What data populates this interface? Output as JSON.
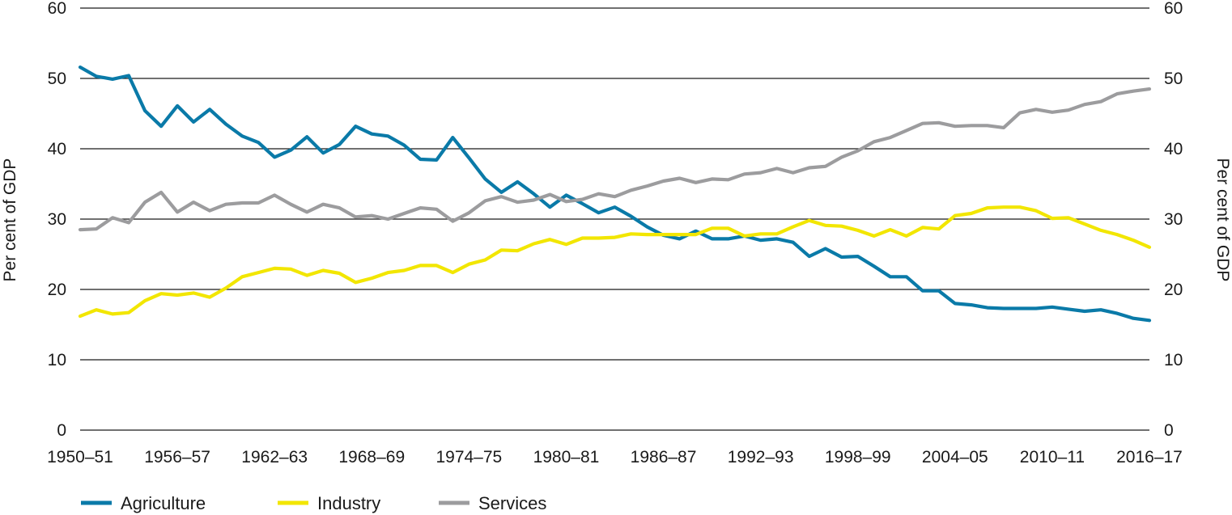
{
  "chart_data": {
    "type": "line",
    "y_left_label": "Per cent of GDP",
    "y_right_label": "Per cent of GDP",
    "ylim": [
      0,
      60
    ],
    "y_ticks": [
      0,
      10,
      20,
      30,
      40,
      50,
      60
    ],
    "grid": "horizontal",
    "legend_position": "bottom-left",
    "x_tick_labels": [
      "1950–51",
      "1956–57",
      "1962–63",
      "1968–69",
      "1974–75",
      "1980–81",
      "1986–87",
      "1992–93",
      "1998–99",
      "2004–05",
      "2010–11",
      "2016–17"
    ],
    "x_start_year": 1950,
    "x_end_year": 2016,
    "series": [
      {
        "name": "Agriculture",
        "color": "#0a7aa8",
        "values": [
          51.6,
          50.3,
          49.9,
          50.4,
          45.4,
          43.2,
          46.1,
          43.8,
          45.6,
          43.5,
          41.8,
          40.9,
          38.8,
          39.8,
          41.7,
          39.4,
          40.6,
          43.2,
          42.1,
          41.8,
          40.5,
          38.5,
          38.4,
          41.6,
          38.7,
          35.7,
          33.8,
          35.3,
          33.6,
          31.7,
          33.4,
          32.2,
          30.9,
          31.7,
          30.4,
          28.9,
          27.7,
          27.2,
          28.3,
          27.2,
          27.2,
          27.6,
          27.0,
          27.2,
          26.7,
          24.7,
          25.8,
          24.6,
          24.7,
          23.3,
          21.8,
          21.8,
          19.8,
          19.8,
          18.0,
          17.8,
          17.4,
          17.3,
          17.3,
          17.3,
          17.5,
          17.2,
          16.9,
          17.1,
          16.6,
          15.9,
          15.6
        ]
      },
      {
        "name": "Industry",
        "color": "#f2e600",
        "values": [
          16.2,
          17.1,
          16.5,
          16.7,
          18.4,
          19.4,
          19.2,
          19.5,
          18.9,
          20.2,
          21.8,
          22.4,
          23.0,
          22.9,
          22.0,
          22.7,
          22.3,
          21.0,
          21.6,
          22.4,
          22.7,
          23.4,
          23.4,
          22.4,
          23.6,
          24.2,
          25.6,
          25.5,
          26.5,
          27.1,
          26.4,
          27.3,
          27.3,
          27.4,
          27.9,
          27.8,
          27.8,
          27.8,
          27.8,
          28.7,
          28.7,
          27.6,
          27.9,
          27.9,
          28.9,
          29.8,
          29.1,
          29.0,
          28.4,
          27.6,
          28.5,
          27.6,
          28.8,
          28.6,
          30.5,
          30.8,
          31.6,
          31.7,
          31.7,
          31.2,
          30.1,
          30.2,
          29.3,
          28.4,
          27.8,
          27.0,
          26.0
        ]
      },
      {
        "name": "Services",
        "color": "#9c9c9e",
        "values": [
          28.5,
          28.6,
          30.2,
          29.5,
          32.4,
          33.8,
          31.0,
          32.4,
          31.2,
          32.1,
          32.3,
          32.3,
          33.4,
          32.1,
          31.0,
          32.1,
          31.6,
          30.3,
          30.5,
          30.0,
          30.8,
          31.6,
          31.4,
          29.7,
          30.9,
          32.6,
          33.2,
          32.4,
          32.7,
          33.5,
          32.5,
          32.8,
          33.6,
          33.2,
          34.1,
          34.7,
          35.4,
          35.8,
          35.2,
          35.7,
          35.6,
          36.4,
          36.6,
          37.2,
          36.6,
          37.3,
          37.5,
          38.8,
          39.7,
          41.0,
          41.6,
          42.6,
          43.6,
          43.7,
          43.2,
          43.3,
          43.3,
          43.0,
          45.1,
          45.6,
          45.2,
          45.5,
          46.3,
          46.7,
          47.8,
          48.2,
          48.5
        ]
      }
    ]
  }
}
